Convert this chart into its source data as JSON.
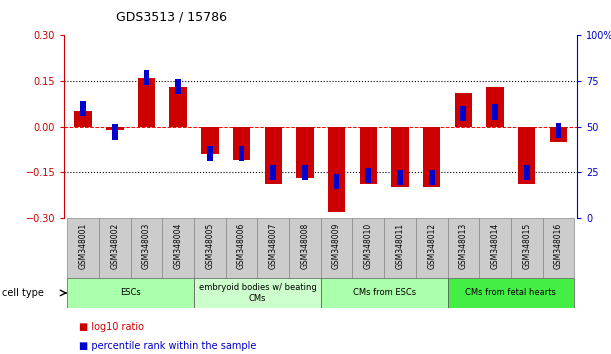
{
  "title": "GDS3513 / 15786",
  "samples": [
    "GSM348001",
    "GSM348002",
    "GSM348003",
    "GSM348004",
    "GSM348005",
    "GSM348006",
    "GSM348007",
    "GSM348008",
    "GSM348009",
    "GSM348010",
    "GSM348011",
    "GSM348012",
    "GSM348013",
    "GSM348014",
    "GSM348015",
    "GSM348016"
  ],
  "log10_ratio": [
    0.05,
    -0.01,
    0.16,
    0.13,
    -0.09,
    -0.11,
    -0.19,
    -0.17,
    -0.28,
    -0.19,
    -0.2,
    -0.2,
    0.11,
    0.13,
    -0.19,
    -0.05
  ],
  "percentile_rank": [
    60,
    47,
    77,
    72,
    35,
    35,
    25,
    25,
    20,
    23,
    22,
    22,
    57,
    58,
    25,
    48
  ],
  "ylim_left": [
    -0.3,
    0.3
  ],
  "ylim_right": [
    0,
    100
  ],
  "yticks_left": [
    -0.3,
    -0.15,
    0.0,
    0.15,
    0.3
  ],
  "yticks_right": [
    0,
    25,
    50,
    75,
    100
  ],
  "ytick_labels_right": [
    "0",
    "25",
    "50",
    "75",
    "100%"
  ],
  "bar_color_red": "#CC0000",
  "bar_color_blue": "#0000CC",
  "hline_color": "#FF0000",
  "dotline_color": "#000000",
  "cell_type_groups": [
    {
      "label": "ESCs",
      "start": 0,
      "end": 3,
      "color": "#AAFFAA"
    },
    {
      "label": "embryoid bodies w/ beating\nCMs",
      "start": 4,
      "end": 7,
      "color": "#CCFFCC"
    },
    {
      "label": "CMs from ESCs",
      "start": 8,
      "end": 11,
      "color": "#AAFFAA"
    },
    {
      "label": "CMs from fetal hearts",
      "start": 12,
      "end": 15,
      "color": "#00EE00"
    }
  ],
  "legend_red": "log10 ratio",
  "legend_blue": "percentile rank within the sample",
  "cell_type_label": "cell type",
  "bg_color": "#FFFFFF",
  "plot_bg_color": "#FFFFFF",
  "group_boundaries": [
    0,
    4,
    8,
    12,
    16
  ]
}
